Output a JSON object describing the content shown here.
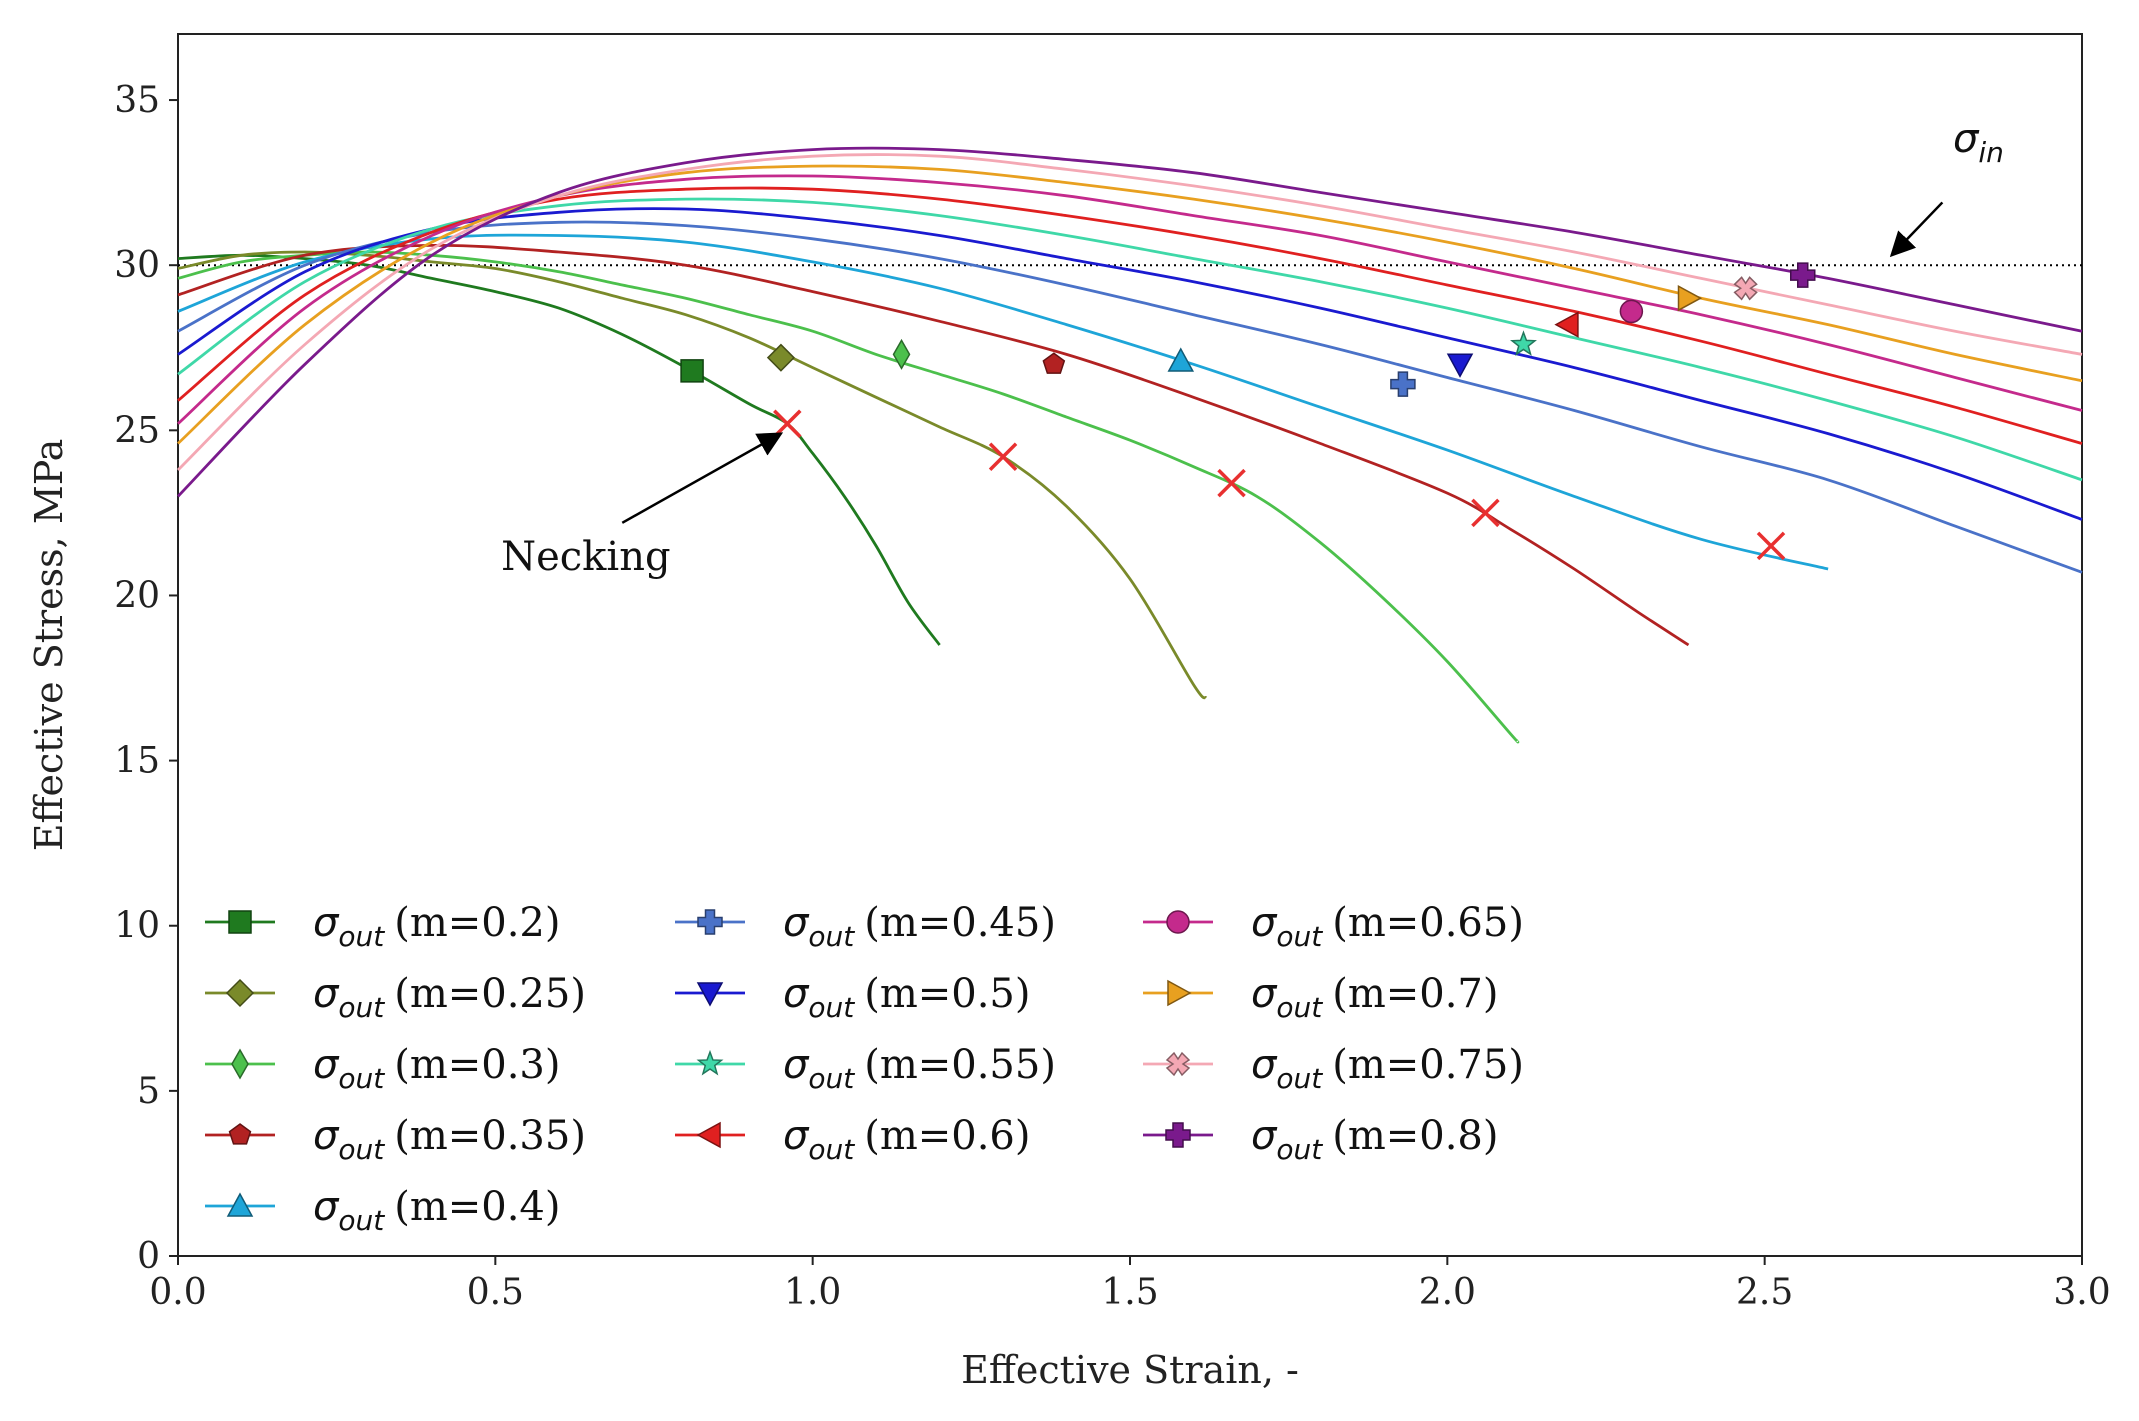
{
  "chart_data": {
    "type": "line",
    "title": "",
    "xlabel": "Effective Strain, -",
    "ylabel": "Effective Stress, MPa",
    "xlim": [
      0,
      3
    ],
    "ylim": [
      0,
      37
    ],
    "xticks": [
      "0.0",
      "0.5",
      "1.0",
      "1.5",
      "2.0",
      "2.5",
      "3.0"
    ],
    "xtick_values": [
      0,
      0.5,
      1.0,
      1.5,
      2.0,
      2.5,
      3.0
    ],
    "yticks": [
      "0",
      "5",
      "10",
      "15",
      "20",
      "25",
      "30",
      "35"
    ],
    "ytick_values": [
      0,
      5,
      10,
      15,
      20,
      25,
      30,
      35
    ],
    "grid": false,
    "legend_placement": "lower-left",
    "reference_line": {
      "y": 30,
      "style": "dotted",
      "label_symbol": "σ",
      "label_subscript": "in"
    },
    "necking_annotation": {
      "text": "Necking",
      "text_at": [
        0.58,
        21.2
      ],
      "arrow_from": [
        0.7,
        22.2
      ],
      "arrow_to": [
        0.95,
        24.9
      ]
    },
    "sigma_in_arrow": {
      "from": [
        2.78,
        31.9
      ],
      "to": [
        2.7,
        30.3
      ]
    },
    "legend_prefix_symbol": "σ",
    "legend_prefix_subscript": "out",
    "series": [
      {
        "legend": "(m=0.2)",
        "color": "#1f7a1f",
        "marker": "square",
        "x": [
          0,
          0.1,
          0.2,
          0.3,
          0.4,
          0.5,
          0.6,
          0.7,
          0.8,
          0.9,
          0.96,
          1.0,
          1.05,
          1.1,
          1.15,
          1.2
        ],
        "y": [
          30.2,
          30.3,
          30.2,
          30.0,
          29.6,
          29.2,
          28.7,
          27.9,
          26.9,
          25.8,
          25.2,
          24.3,
          23.0,
          21.5,
          19.8,
          18.5
        ],
        "marker_at": [
          0.81,
          26.8
        ],
        "neck_at": [
          0.96,
          25.2
        ]
      },
      {
        "legend": "(m=0.25)",
        "color": "#7a8a2a",
        "marker": "diamond",
        "x": [
          0,
          0.1,
          0.2,
          0.3,
          0.4,
          0.5,
          0.6,
          0.7,
          0.8,
          0.9,
          1.0,
          1.1,
          1.2,
          1.3,
          1.4,
          1.5,
          1.6,
          1.62
        ],
        "y": [
          29.9,
          30.3,
          30.4,
          30.3,
          30.1,
          29.9,
          29.5,
          29.0,
          28.5,
          27.8,
          26.9,
          26.0,
          25.1,
          24.2,
          22.7,
          20.5,
          17.3,
          16.9
        ],
        "marker_at": [
          0.95,
          27.2
        ],
        "neck_at": [
          1.3,
          24.2
        ]
      },
      {
        "legend": "(m=0.3)",
        "color": "#4cc04c",
        "marker": "thin_diamond",
        "x": [
          0,
          0.1,
          0.2,
          0.3,
          0.4,
          0.5,
          0.6,
          0.7,
          0.8,
          0.9,
          1.0,
          1.1,
          1.2,
          1.3,
          1.4,
          1.5,
          1.6,
          1.7,
          1.8,
          1.9,
          2.0,
          2.1,
          2.11
        ],
        "y": [
          29.6,
          30.1,
          30.3,
          30.4,
          30.3,
          30.1,
          29.8,
          29.4,
          29.0,
          28.5,
          28.0,
          27.3,
          26.7,
          26.1,
          25.4,
          24.7,
          23.9,
          23.0,
          21.6,
          19.9,
          18.0,
          15.8,
          15.6
        ],
        "marker_at": [
          1.14,
          27.3
        ],
        "neck_at": [
          1.66,
          23.4
        ]
      },
      {
        "legend": "(m=0.35)",
        "color": "#b22222",
        "marker": "pentagon",
        "x": [
          0,
          0.2,
          0.4,
          0.6,
          0.8,
          1.0,
          1.2,
          1.4,
          1.6,
          1.8,
          2.0,
          2.1,
          2.2,
          2.3,
          2.38
        ],
        "y": [
          29.1,
          30.3,
          30.6,
          30.4,
          30.0,
          29.2,
          28.3,
          27.3,
          26.0,
          24.6,
          23.1,
          22.0,
          20.8,
          19.5,
          18.5
        ],
        "marker_at": [
          1.38,
          27.0
        ],
        "neck_at": [
          2.06,
          22.5
        ]
      },
      {
        "legend": "(m=0.4)",
        "color": "#1ea5d8",
        "marker": "triangle_up",
        "x": [
          0,
          0.2,
          0.4,
          0.6,
          0.8,
          1.0,
          1.2,
          1.4,
          1.6,
          1.8,
          2.0,
          2.2,
          2.4,
          2.6
        ],
        "y": [
          28.6,
          30.1,
          30.8,
          30.9,
          30.7,
          30.1,
          29.3,
          28.2,
          27.0,
          25.7,
          24.4,
          23.0,
          21.7,
          20.8
        ],
        "marker_at": [
          1.58,
          27.1
        ],
        "neck_at": [
          2.51,
          21.5
        ]
      },
      {
        "legend": "(m=0.45)",
        "color": "#4a72c8",
        "marker": "plus",
        "x": [
          0,
          0.2,
          0.4,
          0.6,
          0.8,
          1.0,
          1.2,
          1.4,
          1.6,
          1.8,
          2.0,
          2.2,
          2.4,
          2.6,
          2.8,
          3.0
        ],
        "y": [
          28.0,
          30.0,
          31.0,
          31.3,
          31.2,
          30.8,
          30.2,
          29.4,
          28.5,
          27.6,
          26.6,
          25.6,
          24.5,
          23.5,
          22.1,
          20.7
        ],
        "marker_at": [
          1.93,
          26.4
        ]
      },
      {
        "legend": "(m=0.5)",
        "color": "#1a1ad0",
        "marker": "triangle_down",
        "x": [
          0,
          0.2,
          0.4,
          0.6,
          0.8,
          1.0,
          1.2,
          1.4,
          1.6,
          1.8,
          2.0,
          2.2,
          2.4,
          2.6,
          2.8,
          3.0
        ],
        "y": [
          27.3,
          29.8,
          31.1,
          31.6,
          31.7,
          31.4,
          30.9,
          30.2,
          29.5,
          28.7,
          27.8,
          26.9,
          25.9,
          24.9,
          23.7,
          22.3
        ],
        "marker_at": [
          2.02,
          27.0
        ]
      },
      {
        "legend": "(m=0.55)",
        "color": "#3fd8a8",
        "marker": "star",
        "x": [
          0,
          0.2,
          0.4,
          0.6,
          0.8,
          1.0,
          1.2,
          1.4,
          1.6,
          1.8,
          2.0,
          2.2,
          2.4,
          2.6,
          2.8,
          3.0
        ],
        "y": [
          26.7,
          29.5,
          31.1,
          31.8,
          32.0,
          31.9,
          31.5,
          30.9,
          30.2,
          29.5,
          28.7,
          27.8,
          26.9,
          25.9,
          24.8,
          23.5
        ],
        "marker_at": [
          2.12,
          27.6
        ]
      },
      {
        "legend": "(m=0.6)",
        "color": "#e02020",
        "marker": "triangle_left",
        "x": [
          0,
          0.2,
          0.4,
          0.6,
          0.8,
          1.0,
          1.2,
          1.4,
          1.6,
          1.8,
          2.0,
          2.2,
          2.4,
          2.6,
          2.8,
          3.0
        ],
        "y": [
          25.9,
          29.1,
          31.0,
          32.0,
          32.3,
          32.3,
          32.0,
          31.5,
          30.9,
          30.2,
          29.4,
          28.6,
          27.7,
          26.7,
          25.7,
          24.6
        ],
        "marker_at": [
          2.19,
          28.2
        ]
      },
      {
        "legend": "(m=0.65)",
        "color": "#c42a8c",
        "marker": "circle",
        "x": [
          0,
          0.2,
          0.4,
          0.6,
          0.8,
          1.0,
          1.2,
          1.4,
          1.6,
          1.8,
          2.0,
          2.2,
          2.4,
          2.6,
          2.8,
          3.0
        ],
        "y": [
          25.2,
          28.7,
          30.9,
          32.1,
          32.6,
          32.7,
          32.5,
          32.1,
          31.5,
          30.9,
          30.1,
          29.3,
          28.5,
          27.6,
          26.6,
          25.6
        ],
        "marker_at": [
          2.29,
          28.6
        ]
      },
      {
        "legend": "(m=0.7)",
        "color": "#e8a020",
        "marker": "triangle_right",
        "x": [
          0,
          0.2,
          0.4,
          0.6,
          0.8,
          1.0,
          1.2,
          1.4,
          1.6,
          1.8,
          2.0,
          2.2,
          2.4,
          2.6,
          2.8,
          3.0
        ],
        "y": [
          24.6,
          28.2,
          30.7,
          32.1,
          32.8,
          33.0,
          32.9,
          32.5,
          32.0,
          31.4,
          30.7,
          29.9,
          29.0,
          28.2,
          27.3,
          26.5
        ],
        "marker_at": [
          2.38,
          29.0
        ]
      },
      {
        "legend": "(m=0.75)",
        "color": "#f4a8b4",
        "marker": "x_filled",
        "x": [
          0,
          0.2,
          0.4,
          0.6,
          0.8,
          1.0,
          1.2,
          1.4,
          1.6,
          1.8,
          2.0,
          2.2,
          2.4,
          2.6,
          2.8,
          3.0
        ],
        "y": [
          23.8,
          27.6,
          30.5,
          32.1,
          32.9,
          33.3,
          33.3,
          32.9,
          32.4,
          31.8,
          31.1,
          30.4,
          29.6,
          28.8,
          28.0,
          27.3
        ],
        "marker_at": [
          2.47,
          29.3
        ]
      },
      {
        "legend": "(m=0.8)",
        "color": "#7a1a8c",
        "marker": "plus_filled",
        "x": [
          0,
          0.2,
          0.4,
          0.6,
          0.8,
          1.0,
          1.2,
          1.4,
          1.6,
          1.8,
          2.0,
          2.2,
          2.4,
          2.6,
          2.8,
          3.0
        ],
        "y": [
          23.0,
          27.0,
          30.3,
          32.2,
          33.1,
          33.5,
          33.5,
          33.2,
          32.8,
          32.2,
          31.6,
          31.0,
          30.3,
          29.6,
          28.8,
          28.0
        ],
        "marker_at": [
          2.56,
          29.7
        ]
      }
    ]
  }
}
